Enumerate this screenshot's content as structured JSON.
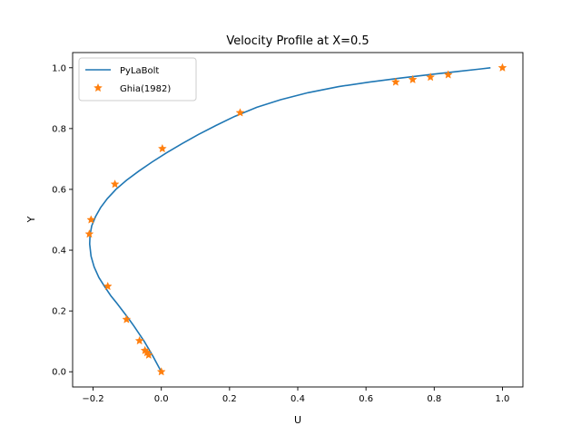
{
  "chart_data": {
    "type": "line",
    "title": "Velocity Profile at X=0.5",
    "xlabel": "U",
    "ylabel": "Y",
    "xlim": [
      -0.26,
      1.06
    ],
    "ylim": [
      -0.05,
      1.05
    ],
    "xticks": [
      -0.2,
      0.0,
      0.2,
      0.4,
      0.6,
      0.8,
      1.0
    ],
    "xtick_labels": [
      "−0.2",
      "0.0",
      "0.2",
      "0.4",
      "0.6",
      "0.8",
      "1.0"
    ],
    "yticks": [
      0.0,
      0.2,
      0.4,
      0.6,
      0.8,
      1.0
    ],
    "ytick_labels": [
      "0.0",
      "0.2",
      "0.4",
      "0.6",
      "0.8",
      "1.0"
    ],
    "grid": false,
    "legend_position": "upper-left",
    "series": [
      {
        "name": "PyLaBolt",
        "style": "line",
        "color": "#1f77b4",
        "x": [
          0.0,
          -0.012,
          -0.024,
          -0.037,
          -0.05,
          -0.065,
          -0.08,
          -0.096,
          -0.113,
          -0.13,
          -0.148,
          -0.166,
          -0.183,
          -0.197,
          -0.206,
          -0.21,
          -0.209,
          -0.204,
          -0.193,
          -0.178,
          -0.158,
          -0.133,
          -0.102,
          -0.066,
          -0.027,
          0.015,
          0.06,
          0.108,
          0.16,
          0.215,
          0.28,
          0.35,
          0.43,
          0.52,
          0.61,
          0.7,
          0.79,
          0.87,
          0.935,
          0.965
        ],
        "y": [
          0.0,
          0.025,
          0.05,
          0.075,
          0.1,
          0.125,
          0.15,
          0.175,
          0.2,
          0.225,
          0.25,
          0.28,
          0.31,
          0.345,
          0.38,
          0.42,
          0.45,
          0.48,
          0.51,
          0.54,
          0.57,
          0.6,
          0.63,
          0.66,
          0.69,
          0.72,
          0.75,
          0.78,
          0.81,
          0.84,
          0.87,
          0.895,
          0.918,
          0.938,
          0.953,
          0.966,
          0.978,
          0.988,
          0.996,
          1.0
        ]
      },
      {
        "name": "Ghia(1982)",
        "style": "marker-star",
        "color": "#ff7f0e",
        "x": [
          0.0,
          -0.037,
          -0.042,
          -0.048,
          -0.064,
          -0.102,
          -0.157,
          -0.211,
          -0.206,
          -0.136,
          0.003,
          0.231,
          0.687,
          0.737,
          0.789,
          0.841,
          1.0
        ],
        "y": [
          0.0,
          0.055,
          0.063,
          0.07,
          0.102,
          0.172,
          0.281,
          0.453,
          0.5,
          0.617,
          0.734,
          0.852,
          0.953,
          0.961,
          0.969,
          0.977,
          1.0
        ]
      }
    ]
  }
}
